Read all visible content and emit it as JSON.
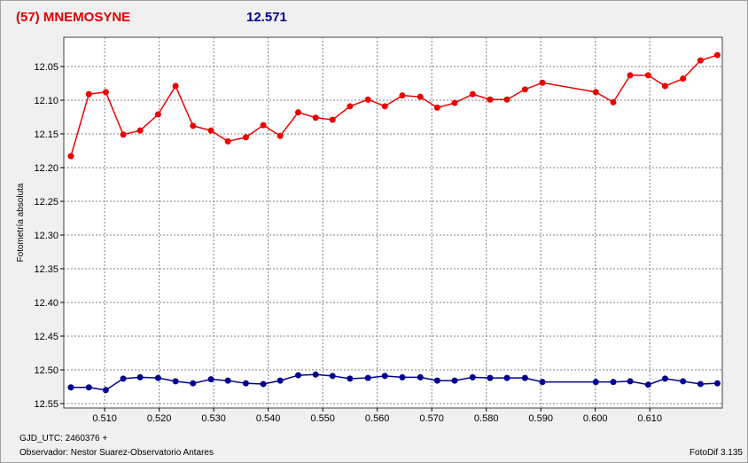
{
  "chart_data": {
    "type": "line",
    "title": "(57) MNEMOSYNE",
    "subtitle": "12.571",
    "y_label": "Fotometría absoluta",
    "x_label": "GJD_UTC: 2460376 +",
    "observer": "Observador: Nestor Suarez-Observatorio Antares",
    "software": "FotoDif 3.135",
    "title_color": "#e00000",
    "subtitle_color": "#000090",
    "grid": true,
    "y_inverted": true,
    "xlim": [
      0.5025,
      0.6233
    ],
    "ylim": [
      12.0066,
      12.5566
    ],
    "xticks": [
      {
        "value": 0.51,
        "label": "0.510"
      },
      {
        "value": 0.52,
        "label": "0.520"
      },
      {
        "value": 0.53,
        "label": "0.530"
      },
      {
        "value": 0.54,
        "label": "0.540"
      },
      {
        "value": 0.55,
        "label": "0.550"
      },
      {
        "value": 0.56,
        "label": "0.560"
      },
      {
        "value": 0.57,
        "label": "0.570"
      },
      {
        "value": 0.58,
        "label": "0.580"
      },
      {
        "value": 0.59,
        "label": "0.590"
      },
      {
        "value": 0.6,
        "label": "0.600"
      },
      {
        "value": 0.61,
        "label": "0.610"
      }
    ],
    "yticks": [
      12.05,
      {
        "value": 12.1,
        "label": "12.10"
      },
      12.15,
      {
        "value": 12.2,
        "label": "12.20"
      },
      12.25,
      {
        "value": 12.3,
        "label": "12.30"
      },
      12.35,
      {
        "value": 12.4,
        "label": "12.40"
      },
      12.45,
      {
        "value": 12.5,
        "label": "12.50"
      },
      12.55
    ],
    "x": [
      0.5038,
      0.5071,
      0.5102,
      0.5134,
      0.5165,
      0.5198,
      0.523,
      0.5262,
      0.5295,
      0.5326,
      0.5359,
      0.5391,
      0.5422,
      0.5455,
      0.5487,
      0.5518,
      0.555,
      0.5583,
      0.5614,
      0.5646,
      0.5679,
      0.571,
      0.5742,
      0.5775,
      0.5807,
      0.5838,
      0.5871,
      0.5903,
      0.6001,
      0.6033,
      0.6064,
      0.6097,
      0.6128,
      0.6161,
      0.6193,
      0.6224
    ],
    "series": [
      {
        "color": "#ee0000",
        "values": [
          12.183,
          12.091,
          12.088,
          12.151,
          12.145,
          12.121,
          12.079,
          12.138,
          12.145,
          12.161,
          12.155,
          12.137,
          12.153,
          12.118,
          12.126,
          12.129,
          12.109,
          12.099,
          12.109,
          12.093,
          12.095,
          12.111,
          12.104,
          12.091,
          12.099,
          12.099,
          12.084,
          12.074,
          12.088,
          12.103,
          12.063,
          12.063,
          12.079,
          12.068,
          12.041,
          12.033
        ]
      },
      {
        "color": "#000090",
        "values": [
          12.526,
          12.526,
          12.53,
          12.513,
          12.511,
          12.512,
          12.517,
          12.52,
          12.514,
          12.516,
          12.52,
          12.521,
          12.516,
          12.508,
          12.507,
          12.509,
          12.513,
          12.512,
          12.509,
          12.511,
          12.511,
          12.516,
          12.516,
          12.511,
          12.512,
          12.512,
          12.512,
          12.518,
          12.518,
          12.518,
          12.517,
          12.522,
          12.513,
          12.517,
          12.521,
          12.52
        ]
      }
    ]
  }
}
